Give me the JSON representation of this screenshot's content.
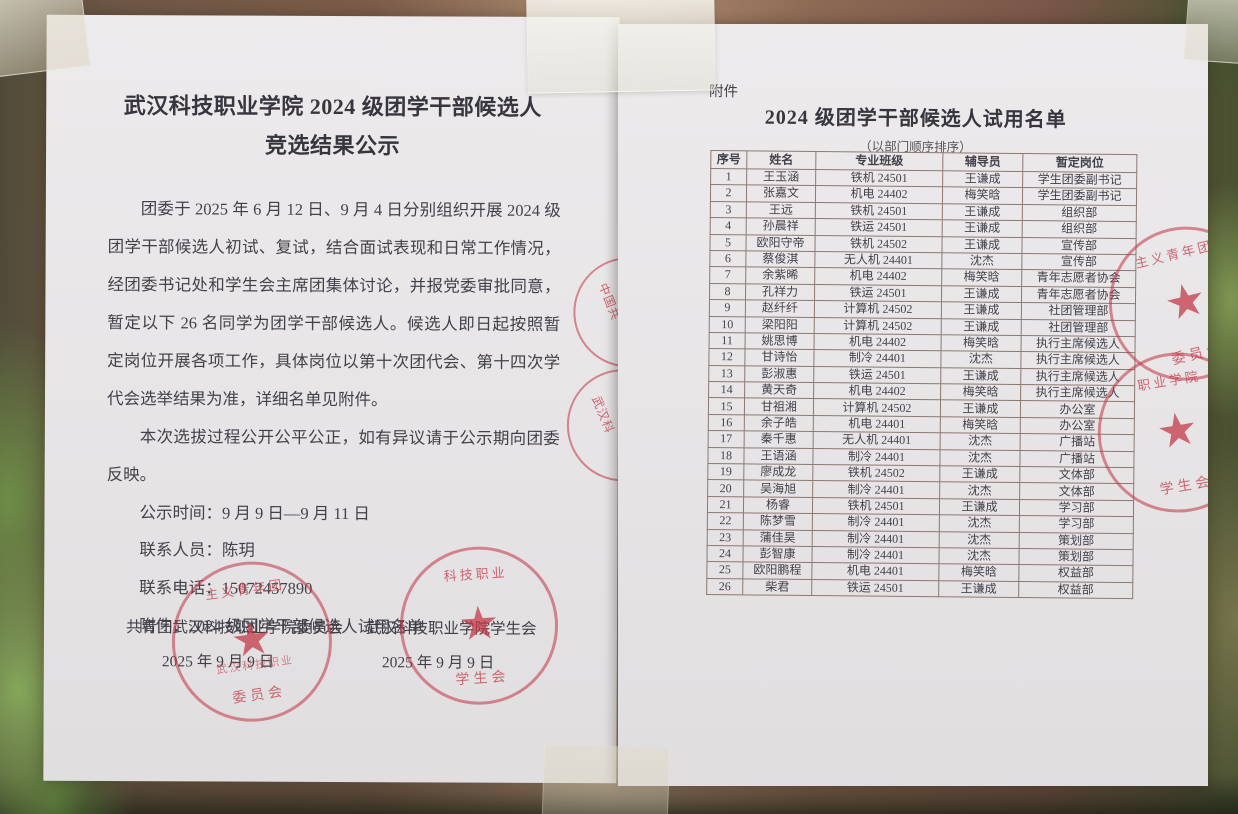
{
  "left_page": {
    "title_line1": "武汉科技职业学院 2024 级团学干部候选人",
    "title_line2": "竞选结果公示",
    "paragraph1": "团委于 2025 年 6 月 12 日、9 月 4 日分别组织开展 2024 级团学干部候选人初试、复试，结合面试表现和日常工作情况，经团委书记处和学生会主席团集体讨论，并报党委审批同意，暂定以下 26 名同学为团学干部候选人。候选人即日起按照暂定岗位开展各项工作，具体岗位以第十次团代会、第十四次学代会选举结果为准，详细名单见附件。",
    "paragraph2": "本次选拔过程公开公平公正，如有异议请于公示期向团委反映。",
    "publicity_period": "公示时间：9 月 9 日—9 月 11 日",
    "contact_person": "联系人员：陈玥",
    "contact_phone": "联系电话：15072457890",
    "attachment_note": "附件：2024 级团学干部候选人试用名单",
    "footer_left_org": "共青团武汉科技职业学院委员会",
    "footer_left_date": "2025 年 9 月 9 日",
    "footer_right_org": "武汉科技职业学院学生会",
    "footer_right_date": "2025 年 9 月 9 日"
  },
  "right_page": {
    "attachment_label": "附件",
    "title": "2024 级团学干部候选人试用名单",
    "subtitle": "（以部门顺序排序）",
    "table": {
      "headers": [
        "序号",
        "姓名",
        "专业班级",
        "辅导员",
        "暂定岗位"
      ],
      "rows": [
        [
          "1",
          "王玉涵",
          "铁机 24501",
          "王谦成",
          "学生团委副书记"
        ],
        [
          "2",
          "张嘉文",
          "机电 24402",
          "梅笑晗",
          "学生团委副书记"
        ],
        [
          "3",
          "王远",
          "铁机 24501",
          "王谦成",
          "组织部"
        ],
        [
          "4",
          "孙晨祥",
          "铁运 24501",
          "王谦成",
          "组织部"
        ],
        [
          "5",
          "欧阳守帝",
          "铁机 24502",
          "王谦成",
          "宣传部"
        ],
        [
          "6",
          "蔡俊淇",
          "无人机 24401",
          "沈杰",
          "宣传部"
        ],
        [
          "7",
          "余紫晞",
          "机电 24402",
          "梅笑晗",
          "青年志愿者协会"
        ],
        [
          "8",
          "孔祥力",
          "铁运 24501",
          "王谦成",
          "青年志愿者协会"
        ],
        [
          "9",
          "赵纤纤",
          "计算机 24502",
          "王谦成",
          "社团管理部"
        ],
        [
          "10",
          "梁阳阳",
          "计算机 24502",
          "王谦成",
          "社团管理部"
        ],
        [
          "11",
          "姚思博",
          "机电 24402",
          "梅笑晗",
          "执行主席候选人"
        ],
        [
          "12",
          "甘诗怡",
          "制冷 24401",
          "沈杰",
          "执行主席候选人"
        ],
        [
          "13",
          "彭淑惠",
          "铁运 24501",
          "王谦成",
          "执行主席候选人"
        ],
        [
          "14",
          "黄天奇",
          "机电 24402",
          "梅笑晗",
          "执行主席候选人"
        ],
        [
          "15",
          "甘祖湘",
          "计算机 24502",
          "王谦成",
          "办公室"
        ],
        [
          "16",
          "余子皓",
          "机电 24401",
          "梅笑晗",
          "办公室"
        ],
        [
          "17",
          "秦千惠",
          "无人机 24401",
          "沈杰",
          "广播站"
        ],
        [
          "18",
          "王语涵",
          "制冷 24401",
          "沈杰",
          "广播站"
        ],
        [
          "19",
          "廖成龙",
          "铁机 24502",
          "王谦成",
          "文体部"
        ],
        [
          "20",
          "吴海旭",
          "制冷 24401",
          "沈杰",
          "文体部"
        ],
        [
          "21",
          "杨睿",
          "铁机 24501",
          "王谦成",
          "学习部"
        ],
        [
          "22",
          "陈梦雪",
          "制冷 24401",
          "沈杰",
          "学习部"
        ],
        [
          "23",
          "蒲佳昊",
          "制冷 24401",
          "沈杰",
          "策划部"
        ],
        [
          "24",
          "彭智康",
          "制冷 24401",
          "沈杰",
          "策划部"
        ],
        [
          "25",
          "欧阳鹏程",
          "机电 24401",
          "梅笑晗",
          "权益部"
        ],
        [
          "26",
          "柴君",
          "铁运 24501",
          "王谦成",
          "权益部"
        ]
      ]
    }
  },
  "stamps": {
    "star": "★",
    "committee_bottom": {
      "arc_top": "主义青年团",
      "band": "武汉科技职业",
      "bottom": "委员会"
    },
    "student_union_bottom": {
      "arc_top": "科技职业",
      "band": "",
      "bottom": "学生会"
    },
    "left_edge_upper_text": "中国共",
    "left_edge_lower_text": "武汉科",
    "right_edge_upper": {
      "arc_top": "主义青年团",
      "bottom": "委员会"
    },
    "right_edge_lower": {
      "arc_top": "职业学院",
      "bottom": "学生会"
    }
  },
  "colors": {
    "stamp_red": "#c63042",
    "ink": "#3f3f4a",
    "paper": "#efeef2"
  }
}
